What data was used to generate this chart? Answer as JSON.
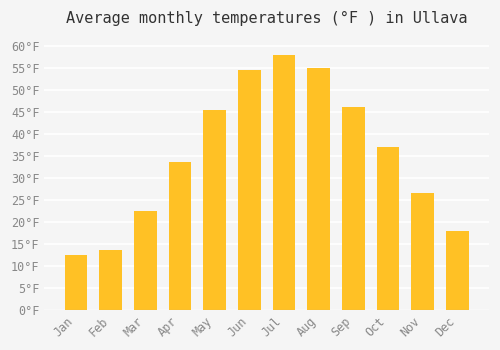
{
  "title": "Average monthly temperatures (°F ) in Ullava",
  "months": [
    "Jan",
    "Feb",
    "Mar",
    "Apr",
    "May",
    "Jun",
    "Jul",
    "Aug",
    "Sep",
    "Oct",
    "Nov",
    "Dec"
  ],
  "values": [
    12.5,
    13.5,
    22.5,
    33.5,
    45.5,
    54.5,
    58.0,
    55.0,
    46.0,
    37.0,
    26.5,
    18.0
  ],
  "bar_color_top": "#FFC125",
  "bar_color_bottom": "#FFB300",
  "ylim": [
    0,
    62
  ],
  "yticks": [
    0,
    5,
    10,
    15,
    20,
    25,
    30,
    35,
    40,
    45,
    50,
    55,
    60
  ],
  "background_color": "#f5f5f5",
  "grid_color": "#ffffff",
  "title_fontsize": 11,
  "tick_fontsize": 8.5,
  "bar_edge_color": "none"
}
